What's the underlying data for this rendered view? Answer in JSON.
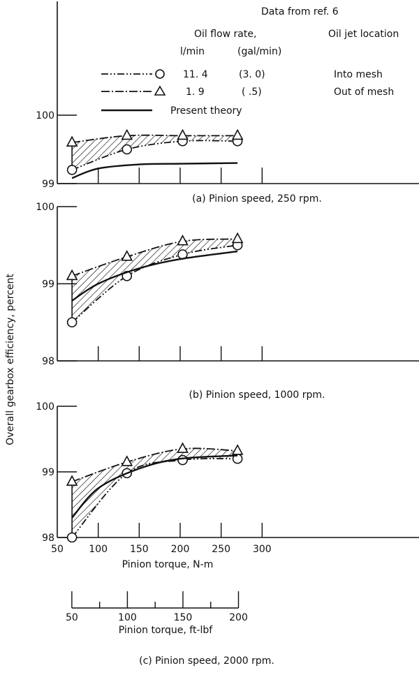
{
  "legend": {
    "source": "Data from ref. 6",
    "flow_header": "Oil flow rate,",
    "flow_units_si": "l/min",
    "flow_units_us": "(gal/min)",
    "location_header": "Oil jet location",
    "entries": [
      {
        "series": "into-mesh",
        "marker": "circle",
        "si": "11. 4",
        "us": "(3. 0)",
        "location": "Into mesh"
      },
      {
        "series": "out-of-mesh",
        "marker": "triangle",
        "si": "1. 9",
        "us": "( .5)",
        "location": "Out of mesh"
      },
      {
        "series": "theory",
        "label": "Present theory"
      }
    ]
  },
  "ylabel": "Overall gearbox efficiency, percent",
  "xlabel": "Pinion torque, N-m",
  "xlabel2": "Pinion torque, ft-lbf",
  "x_ticks": [
    "50",
    "100",
    "150",
    "200",
    "250",
    "300"
  ],
  "x2_ticks": [
    "50",
    "100",
    "150",
    "200"
  ],
  "chart_data": [
    {
      "type": "line",
      "title": "(a) Pinion speed, 250 rpm.",
      "xlabel": "",
      "ylabel": "Overall gearbox efficiency, percent",
      "xlim": [
        50,
        350
      ],
      "ylim": [
        99,
        100.3
      ],
      "y_ticks": [
        "99",
        "100"
      ],
      "series": [
        {
          "name": "11.4 l/min (3.0 gal/min), Into mesh",
          "marker": "circle",
          "x": [
            68,
            135,
            203,
            270
          ],
          "y": [
            99.2,
            99.5,
            99.62,
            99.62
          ]
        },
        {
          "name": "1.9 l/min (.5 gal/min), Out of mesh",
          "marker": "triangle",
          "x": [
            68,
            135,
            203,
            270
          ],
          "y": [
            99.6,
            99.7,
            99.7,
            99.7
          ]
        },
        {
          "name": "Present theory",
          "x": [
            68,
            100,
            150,
            200,
            270
          ],
          "y": [
            99.08,
            99.22,
            99.28,
            99.29,
            99.3
          ]
        }
      ]
    },
    {
      "type": "line",
      "title": "(b) Pinion speed, 1000 rpm.",
      "xlabel": "",
      "ylabel": "",
      "xlim": [
        50,
        350
      ],
      "ylim": [
        98,
        100
      ],
      "y_ticks": [
        "98",
        "99",
        "100"
      ],
      "series": [
        {
          "name": "11.4 l/min (3.0 gal/min), Into mesh",
          "marker": "circle",
          "x": [
            68,
            135,
            203,
            270
          ],
          "y": [
            98.5,
            99.1,
            99.38,
            99.5
          ]
        },
        {
          "name": "1.9 l/min (.5 gal/min), Out of mesh",
          "marker": "triangle",
          "x": [
            68,
            135,
            203,
            270
          ],
          "y": [
            99.1,
            99.35,
            99.55,
            99.58
          ]
        },
        {
          "name": "Present theory",
          "x": [
            68,
            100,
            150,
            200,
            270
          ],
          "y": [
            98.78,
            99.0,
            99.2,
            99.32,
            99.42
          ]
        }
      ]
    },
    {
      "type": "line",
      "title": "(c) Pinion speed, 2000 rpm.",
      "xlabel": "Pinion torque, N-m",
      "ylabel": "",
      "xlim": [
        50,
        350
      ],
      "ylim": [
        98,
        100
      ],
      "y_ticks": [
        "98",
        "99",
        "100"
      ],
      "series": [
        {
          "name": "11.4 l/min (3.0 gal/min), Into mesh",
          "marker": "circle",
          "x": [
            68,
            135,
            203,
            270
          ],
          "y": [
            98.0,
            98.98,
            99.18,
            99.2
          ]
        },
        {
          "name": "1.9 l/min (.5 gal/min), Out of mesh",
          "marker": "triangle",
          "x": [
            68,
            135,
            203,
            270
          ],
          "y": [
            98.85,
            99.15,
            99.35,
            99.32
          ]
        },
        {
          "name": "Present theory",
          "x": [
            68,
            100,
            150,
            200,
            270
          ],
          "y": [
            98.3,
            98.75,
            99.05,
            99.2,
            99.25
          ]
        }
      ]
    }
  ]
}
